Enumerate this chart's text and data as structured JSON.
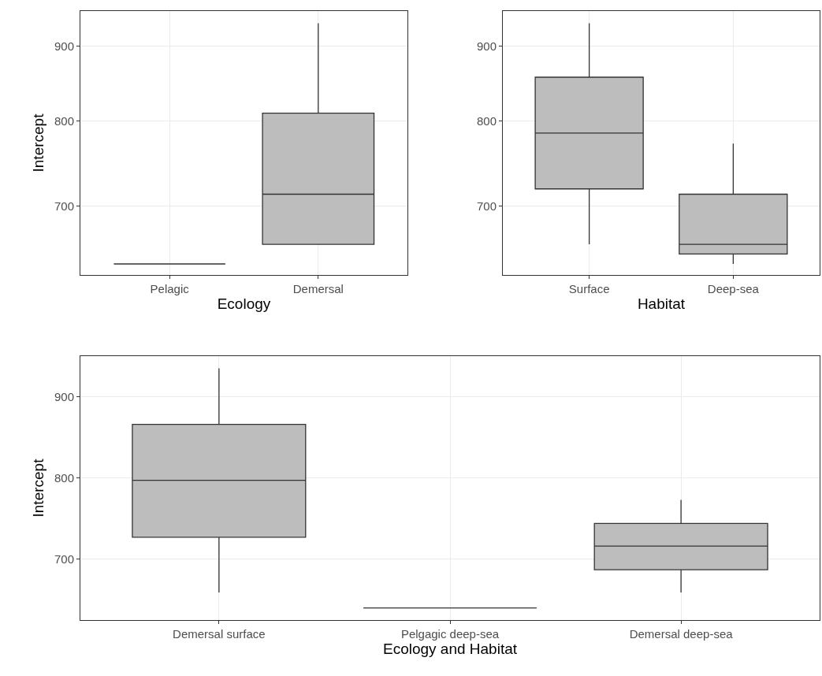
{
  "chart_data": [
    {
      "type": "box",
      "categories": [
        "Pelagic",
        "Demersal"
      ],
      "xlabel": "Ecology",
      "ylabel": "Intercept",
      "log": "y",
      "ylim": [
        628,
        951
      ],
      "yticks": [
        700,
        800,
        900
      ],
      "grid": true,
      "colors": [
        "#333333",
        "#bdbdbd"
      ],
      "boxes": [
        {
          "low": 639,
          "q1": 639,
          "median": 639,
          "q3": 639,
          "high": 639
        },
        {
          "low": 659,
          "q1": 659,
          "median": 713,
          "q3": 810,
          "high": 933
        }
      ]
    },
    {
      "type": "box",
      "categories": [
        "Surface",
        "Deep-sea"
      ],
      "xlabel": "Habitat",
      "log": "y",
      "ylim": [
        628,
        951
      ],
      "yticks": [
        700,
        800,
        900
      ],
      "grid": true,
      "colors": [
        "#bdbdbd",
        "#bdbdbd"
      ],
      "boxes": [
        {
          "low": 659,
          "q1": 719,
          "median": 785,
          "q3": 857,
          "high": 933
        },
        {
          "low": 639,
          "q1": 649,
          "median": 659,
          "q3": 713,
          "high": 772
        }
      ]
    },
    {
      "type": "box",
      "categories": [
        "Demersal surface",
        "Pelgagic deep-sea",
        "Demersal deep-sea"
      ],
      "xlabel": "Ecology and Habitat",
      "ylabel": "Intercept",
      "ylim": [
        625,
        950
      ],
      "yticks": [
        700,
        800,
        900
      ],
      "grid": true,
      "colors": [
        "#bdbdbd",
        "#333333",
        "#bdbdbd"
      ],
      "boxes": [
        {
          "low": 659,
          "q1": 727,
          "median": 797,
          "q3": 866,
          "high": 935
        },
        {
          "low": 640,
          "q1": 640,
          "median": 640,
          "q3": 640,
          "high": 640
        },
        {
          "low": 659,
          "q1": 687,
          "median": 716,
          "q3": 744,
          "high": 773
        }
      ]
    }
  ]
}
